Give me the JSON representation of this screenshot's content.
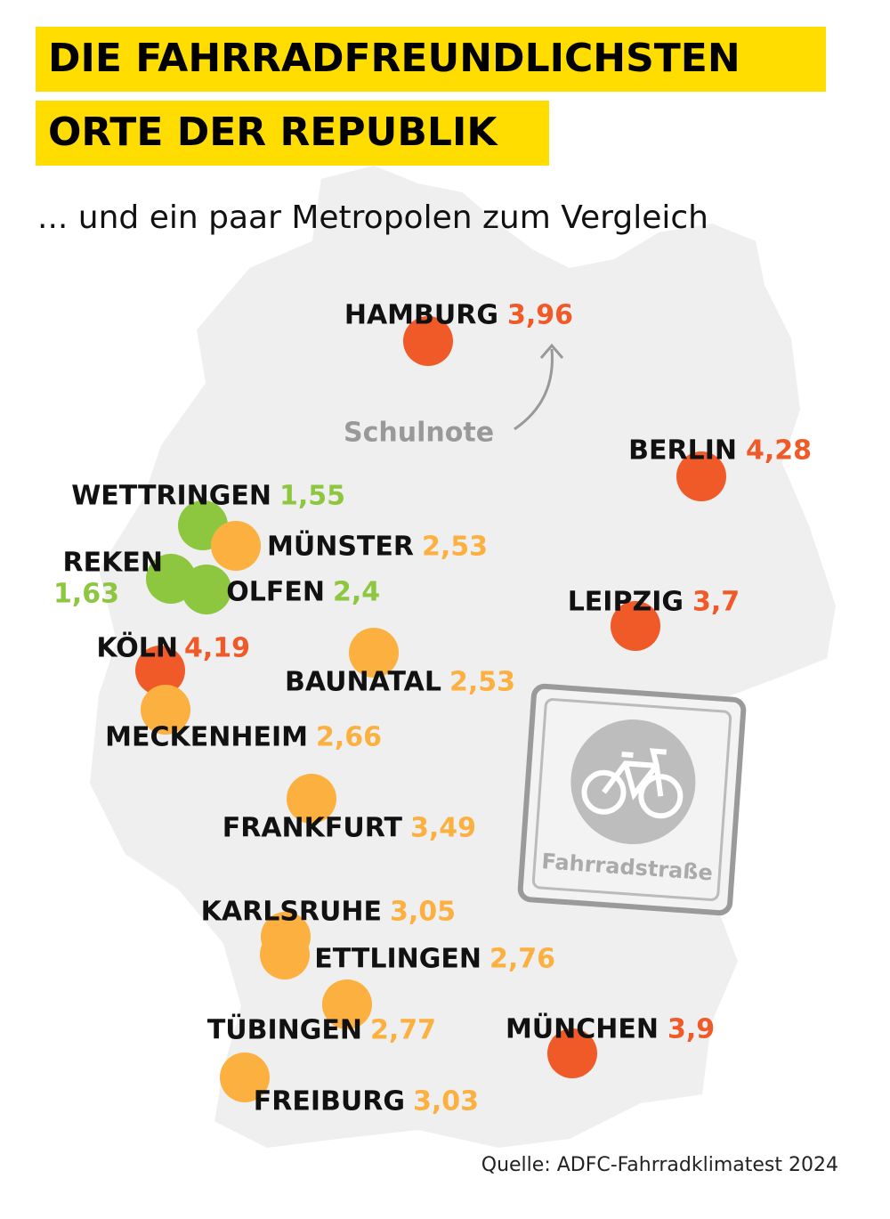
{
  "title_lines": [
    "DIE FAHRRADFREUNDLICHSTEN",
    "ORTE DER REPUBLIK"
  ],
  "subtitle": "... und ein paar Metropolen zum Vergleich",
  "annotation": "Schulnote",
  "sign_label": "Fahrradstraße",
  "source": "Quelle: ADFC-Fahrradklimatest 2024",
  "cities": [
    {
      "name": "HAMBURG",
      "score": "3,96",
      "color": "#f05a28"
    },
    {
      "name": "BERLIN",
      "score": "4,28",
      "color": "#f05a28"
    },
    {
      "name": "WETTRINGEN",
      "score": "1,55",
      "color": "#8dc63f"
    },
    {
      "name": "MÜNSTER",
      "score": "2,53",
      "color": "#fbb040"
    },
    {
      "name": "REKEN",
      "score": "1,63",
      "color": "#8dc63f"
    },
    {
      "name": "OLFEN",
      "score": "2,4",
      "color": "#8dc63f"
    },
    {
      "name": "LEIPZIG",
      "score": "3,7",
      "color": "#f05a28"
    },
    {
      "name": "KÖLN",
      "score": "4,19",
      "color": "#f05a28"
    },
    {
      "name": "BAUNATAL",
      "score": "2,53",
      "color": "#fbb040"
    },
    {
      "name": "MECKENHEIM",
      "score": "2,66",
      "color": "#fbb040"
    },
    {
      "name": "FRANKFURT",
      "score": "3,49",
      "color": "#fbb040"
    },
    {
      "name": "KARLSRUHE",
      "score": "3,05",
      "color": "#fbb040"
    },
    {
      "name": "ETTLINGEN",
      "score": "2,76",
      "color": "#fbb040"
    },
    {
      "name": "TÜBINGEN",
      "score": "2,77",
      "color": "#fbb040"
    },
    {
      "name": "MÜNCHEN",
      "score": "3,9",
      "color": "#f05a28"
    },
    {
      "name": "FREIBURG",
      "score": "3,03",
      "color": "#fbb040"
    }
  ]
}
